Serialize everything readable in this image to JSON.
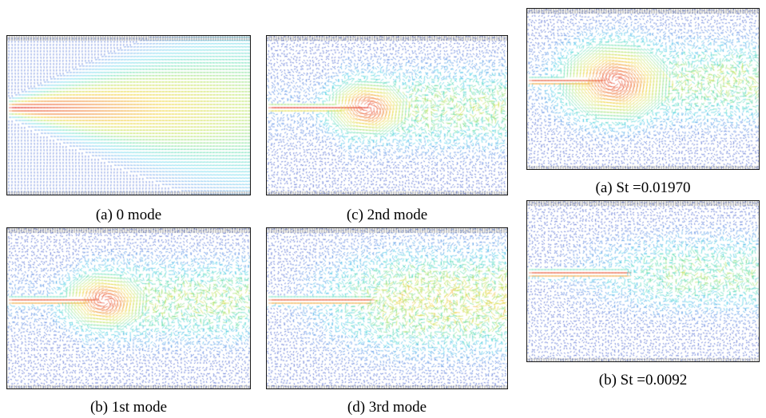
{
  "figure": {
    "panels": [
      {
        "id": "mode0",
        "caption": "(a) 0 mode",
        "pattern": "mean"
      },
      {
        "id": "mode2",
        "caption": "(c) 2nd mode",
        "pattern": "vortex-strong"
      },
      {
        "id": "st1",
        "caption": "(a) St =0.01970",
        "pattern": "vortex-large"
      },
      {
        "id": "mode1",
        "caption": "(b) 1st mode",
        "pattern": "vortex"
      },
      {
        "id": "mode3",
        "caption": "(d) 3rd mode",
        "pattern": "spread"
      },
      {
        "id": "st2",
        "caption": "(b) St =0.0092",
        "pattern": "spread-weak"
      }
    ],
    "colormap": [
      "#0a1ab4",
      "#2a6fe0",
      "#28c8e8",
      "#40d8a0",
      "#b4e040",
      "#f0d020",
      "#f07020",
      "#e01818"
    ]
  }
}
